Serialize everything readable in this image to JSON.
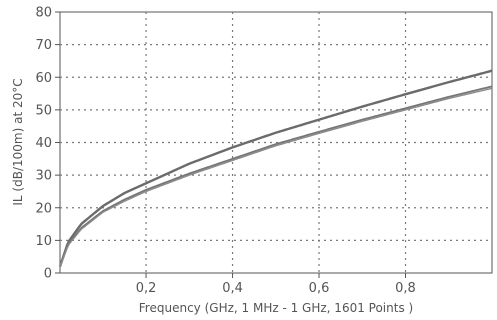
{
  "chart_data": {
    "type": "line",
    "xlabel": "Frequency (GHz, 1 MHz - 1 GHz, 1601 Points )",
    "ylabel": "IL (dB/100m) at 20°C",
    "xlim": [
      0.001,
      1.0
    ],
    "ylim": [
      0,
      80
    ],
    "x_ticks": [
      0.2,
      0.4,
      0.6,
      0.8
    ],
    "x_tick_labels": [
      "0,2",
      "0,4",
      "0,6",
      "0,8"
    ],
    "y_ticks": [
      0,
      10,
      20,
      30,
      40,
      50,
      60,
      70,
      80
    ],
    "y_tick_labels": [
      "0",
      "10",
      "20",
      "30",
      "40",
      "50",
      "60",
      "70",
      "80"
    ],
    "grid": true,
    "grid_style": "dotted",
    "x": [
      0.001,
      0.02,
      0.05,
      0.1,
      0.15,
      0.2,
      0.3,
      0.4,
      0.5,
      0.6,
      0.7,
      0.8,
      0.9,
      1.0
    ],
    "series": [
      {
        "values": [
          2.0,
          9.5,
          15.0,
          20.5,
          24.5,
          27.5,
          33.5,
          38.5,
          43.0,
          47.0,
          51.0,
          54.8,
          58.5,
          62.0
        ],
        "color": "#6b6b6b"
      },
      {
        "values": [
          2.0,
          8.7,
          13.8,
          19.0,
          22.5,
          25.5,
          30.5,
          35.0,
          39.5,
          43.3,
          47.0,
          50.5,
          54.0,
          57.2
        ],
        "color": "#767676"
      },
      {
        "values": [
          2.0,
          8.5,
          13.4,
          18.6,
          22.0,
          25.0,
          30.0,
          34.5,
          39.0,
          42.8,
          46.5,
          50.0,
          53.5,
          56.6
        ],
        "color": "#8a8a8a"
      }
    ]
  }
}
